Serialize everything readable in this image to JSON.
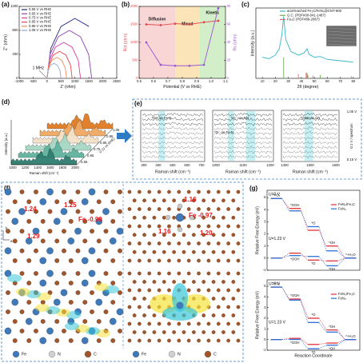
{
  "chart_data": [
    {
      "type": "line",
      "label": "(a)",
      "xlabel": "Z' (ohm)",
      "ylabel": "Z'' (ohm)",
      "xlim": [
        -1000,
        2500
      ],
      "xticks": [
        -1000,
        -500,
        0,
        500,
        1000,
        1500,
        2000,
        2500
      ],
      "ylim": [
        0,
        1200
      ],
      "yticks": [
        0,
        400,
        800,
        1200
      ],
      "legend": "upper left",
      "annotation": "1 MHz",
      "series": [
        {
          "name": "0.55 V vs RHE",
          "color": "#1f2a7a",
          "x": [
            0,
            134,
            500,
            1000,
            1500
          ],
          "values": [
            0,
            500,
            866,
            1000,
            866
          ]
        },
        {
          "name": "0.65 V vs RHE",
          "color": "#8a3fb0",
          "x": [
            0,
            107,
            400,
            800,
            1200,
            1493,
            1600
          ],
          "values": [
            0,
            400,
            693,
            800,
            693,
            400,
            0
          ]
        },
        {
          "name": "0.75 V vs RHE",
          "color": "#d63fa8",
          "x": [
            0,
            80,
            300,
            600,
            900,
            1120,
            1200
          ],
          "values": [
            0,
            300,
            520,
            600,
            520,
            300,
            0
          ]
        },
        {
          "name": "0.85 V vs RHE",
          "color": "#e8444a",
          "x": [
            0,
            60,
            225,
            450,
            675,
            840,
            900
          ],
          "values": [
            0,
            225,
            390,
            450,
            390,
            225,
            0
          ]
        },
        {
          "name": "0.95 V vs RHE",
          "color": "#f08c5a",
          "x": [
            0,
            47,
            175,
            350,
            525,
            653,
            700
          ],
          "values": [
            0,
            175,
            303,
            350,
            303,
            175,
            0
          ]
        },
        {
          "name": "1.05 V vs RHE",
          "color": "#8fa7d8",
          "x": [
            0,
            34,
            125,
            250,
            375,
            467,
            500
          ],
          "values": [
            0,
            125,
            217,
            250,
            217,
            125,
            0
          ]
        }
      ]
    },
    {
      "type": "line",
      "label": "(b)",
      "xlabel": "Potential (V vs RHE)",
      "ylabel": "Rct (ohm)",
      "y2label": "Rs (ohm)",
      "xlim": [
        0.5,
        1.1
      ],
      "xticks": [
        0.5,
        0.6,
        0.7,
        0.8,
        0.9,
        {
          "value": 1,
          "label": "1.0"
        },
        1.1
      ],
      "ylim": [
        0,
        2000
      ],
      "yticks": [
        0,
        500,
        1000,
        1500,
        2000
      ],
      "y2lim": [
        0,
        80
      ],
      "y2ticks": [
        0,
        20,
        40,
        60,
        80
      ],
      "markers": true,
      "x": [
        0.55,
        0.65,
        0.75,
        0.85,
        0.95,
        1.05
      ],
      "regions": [
        {
          "label": "Diffusion",
          "from": 0.5,
          "to": 0.75,
          "color": "#f9d6d6"
        },
        {
          "label": "Mixed",
          "from": 0.75,
          "to": 0.92,
          "color": "#fbe5b8"
        },
        {
          "label": "Kinetic",
          "from": 0.92,
          "to": 1.1,
          "color": "#d2efc9"
        }
      ],
      "series": [
        {
          "color": "#e0474c",
          "values": [
            1500,
            1480,
            1520,
            1500,
            1560,
            1600
          ]
        },
        {
          "color": "#9b59d0",
          "axis": "y2",
          "values": [
            40,
            15,
            14,
            14,
            15,
            78
          ]
        }
      ]
    },
    {
      "type": "line",
      "label": "(c)",
      "xlabel": "2θ (degree)",
      "ylabel": "Intensity (a.u.)",
      "xlim": [
        5,
        85
      ],
      "xticks": [
        10,
        20,
        30,
        40,
        50,
        60,
        70,
        80
      ],
      "ylim": [
        0,
        100
      ],
      "legend": "upper right",
      "x": [
        10,
        15,
        20,
        23,
        25,
        26.4,
        28,
        32,
        38,
        42,
        43.7,
        44.4,
        46,
        50,
        54.5,
        60,
        65,
        70,
        75,
        80
      ],
      "series": [
        {
          "name": "acid-leached Fe₃C/FeN₄@CNT-900",
          "color": "#38b6c9",
          "values": [
            30,
            28,
            33,
            42,
            62,
            88,
            55,
            38,
            33,
            36,
            40,
            42,
            34,
            30,
            31,
            27,
            26,
            25,
            24,
            23
          ]
        }
      ],
      "references": [
        {
          "name": "G.C. (PDF#00-041-1487)",
          "color": "#6aa84f",
          "x": [
            26.4,
            44.4,
            54.5
          ],
          "values": [
            30,
            8,
            5
          ]
        },
        {
          "name": "Fe₃C (PDF#89-2867)",
          "color": "#e06666",
          "x": [
            37.7,
            43.7,
            45,
            49.1,
            78.6
          ],
          "values": [
            6,
            8,
            5,
            4,
            3
          ]
        }
      ]
    },
    {
      "type": "step",
      "label": "(g)",
      "ylabel": "Relative Free Energy (eV)",
      "ylim": [
        -1,
        5.6
      ],
      "yticks": [
        -1,
        0,
        1,
        2,
        3,
        4,
        5
      ],
      "legend": "upper right",
      "annotations": [
        "U=0 V",
        "U=1.23 V"
      ],
      "categories": [
        "*+O₂",
        "*OOH",
        "*O",
        "*OH",
        "*+H₂O"
      ],
      "series": [
        {
          "name": "FeN₄/Fe₃C",
          "color": "#e0303a",
          "values": [
            4.92,
            4.1,
            2.3,
            1.0,
            0
          ]
        },
        {
          "name": "FeN₄",
          "color": "#2d6fd6",
          "values": [
            4.92,
            3.9,
            2.6,
            0.6,
            0
          ]
        }
      ],
      "shifted_series": [
        {
          "color": "#e0303a",
          "values": [
            0,
            0.41,
            -0.16,
            -0.23,
            0
          ]
        },
        {
          "color": "#2d6fd6",
          "values": [
            0,
            0.21,
            0.14,
            -0.63,
            0
          ]
        }
      ]
    },
    {
      "type": "step",
      "ylabel": "Relative Free Energy (eV)",
      "xlabel": "Reaction Coordinate",
      "ylim": [
        -1,
        5.6
      ],
      "yticks": [
        -1,
        0,
        1,
        2,
        3,
        4,
        5
      ],
      "legend": "upper right",
      "annotations": [
        "U=0 V",
        "U=1.23 V"
      ],
      "categories": [
        "*+O₂",
        "*OOH",
        "*O",
        "*OH",
        "*+H₂O"
      ],
      "series": [
        {
          "name": "FeN₃/Fe₃C",
          "color": "#e0303a",
          "values": [
            4.92,
            3.8,
            2.0,
            0.9,
            0
          ]
        },
        {
          "name": "FeN₃",
          "color": "#2d6fd6",
          "values": [
            4.92,
            3.7,
            1.6,
            0.7,
            0
          ]
        }
      ],
      "shifted_series": [
        {
          "color": "#e0303a",
          "values": [
            0,
            0.11,
            -0.46,
            -0.33,
            0
          ]
        },
        {
          "color": "#2d6fd6",
          "values": [
            0,
            0.01,
            -0.86,
            -0.53,
            0
          ]
        }
      ]
    }
  ],
  "panels": {
    "d": {
      "label": "(d)",
      "ylabel": "Intensity (a.u.)",
      "xlabel": "Raman shift (cm⁻¹)",
      "zlabel": "U (V vs RHE)",
      "xticks": [
        "1000",
        "1200",
        "1400",
        "1600",
        "1800",
        "2000"
      ],
      "zticks": [
        "0.55",
        "0.65",
        "0.75",
        "0.85",
        "0.95",
        "1.05"
      ]
    },
    "e": {
      "label": "(e)",
      "xlabel": "Raman shift (cm⁻¹)",
      "top_label": "1.05 V",
      "step_label": "0.1 V / spectrum",
      "bottom_label": "0.15 V",
      "windows": [
        {
          "xticks": [
            "300",
            "400",
            "500",
            "600",
            "700"
          ],
          "annotations": [
            "*OH on Fe-N"
          ]
        },
        {
          "xticks": [
            "1000",
            "1100",
            "1200"
          ],
          "annotations": [
            "*O₂⁻ on CN",
            "*O⁻ on Fe-N"
          ]
        },
        {
          "xticks": [
            "1400",
            "1500",
            "1600"
          ],
          "annotations": [
            "*OOH on CN"
          ]
        }
      ]
    },
    "f": {
      "label": "(f)",
      "axes": [
        "b",
        "a"
      ],
      "left_labels": [
        "1.24",
        "1.25",
        "Fe -0.99",
        "1.29"
      ],
      "right_labels": [
        "1.16",
        "Fe -0.97",
        "1.16",
        "1.20"
      ],
      "legend": [
        "Fe",
        "N",
        "C"
      ]
    }
  }
}
